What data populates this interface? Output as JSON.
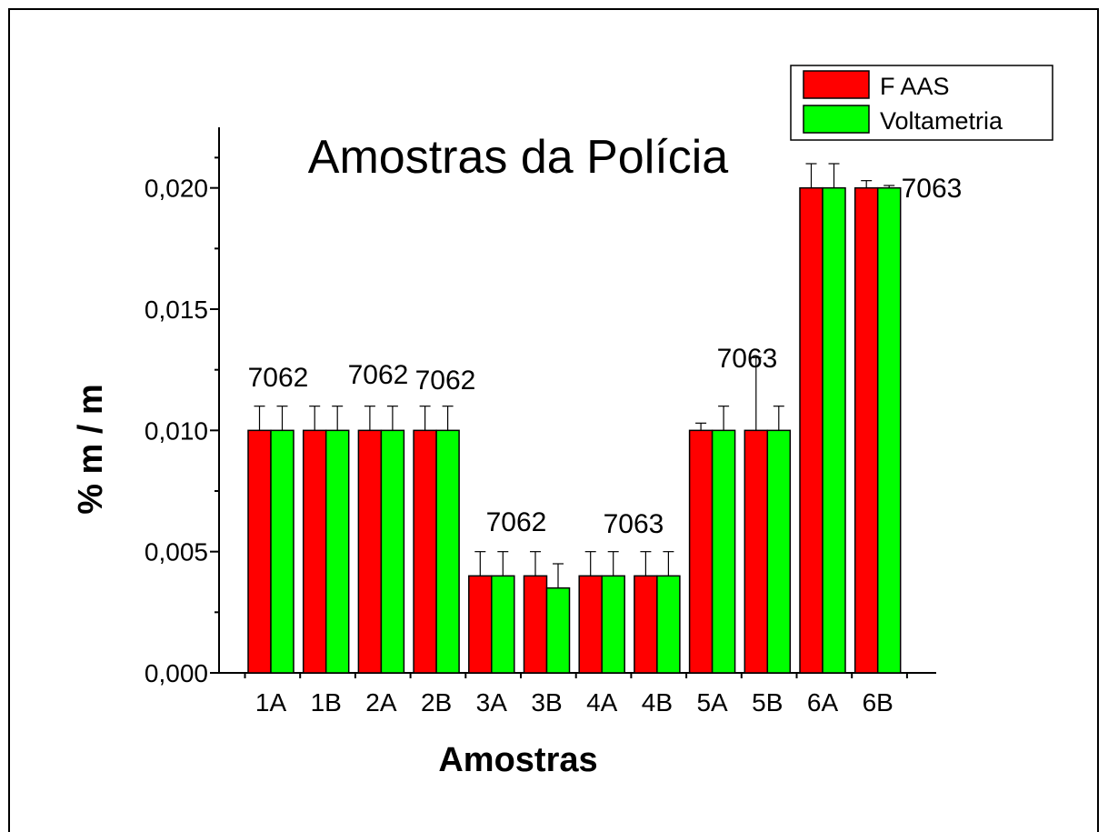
{
  "chart_data": {
    "type": "bar",
    "title": "Amostras da Polícia",
    "xlabel": "Amostras",
    "ylabel": "% m / m",
    "categories": [
      "1A",
      "1B",
      "2A",
      "2B",
      "3A",
      "3B",
      "4A",
      "4B",
      "5A",
      "5B",
      "6A",
      "6B"
    ],
    "series": [
      {
        "name": "F AAS",
        "color": "#ff0000",
        "values": [
          0.01,
          0.01,
          0.01,
          0.01,
          0.004,
          0.004,
          0.004,
          0.004,
          0.01,
          0.01,
          0.02,
          0.02
        ],
        "errors": [
          0.001,
          0.001,
          0.001,
          0.001,
          0.001,
          0.001,
          0.001,
          0.001,
          0.0003,
          0.003,
          0.001,
          0.0003
        ]
      },
      {
        "name": "Voltametria",
        "color": "#00ff00",
        "values": [
          0.01,
          0.01,
          0.01,
          0.01,
          0.004,
          0.0035,
          0.004,
          0.004,
          0.01,
          0.01,
          0.02,
          0.02
        ],
        "errors": [
          0.001,
          0.001,
          0.001,
          0.001,
          0.001,
          0.001,
          0.001,
          0.001,
          0.001,
          0.001,
          0.001,
          0.0001
        ]
      }
    ],
    "annotations": [
      "7062",
      "7062",
      "7062",
      "7062",
      "7063",
      "7063",
      "7063"
    ],
    "ylim": [
      0,
      0.0225
    ],
    "yticks": [
      {
        "value": 0,
        "label": "0,000"
      },
      {
        "value": 0.005,
        "label": "0,005"
      },
      {
        "value": 0.01,
        "label": "0,010"
      },
      {
        "value": 0.015,
        "label": "0,015"
      },
      {
        "value": 0.02,
        "label": "0,020"
      }
    ],
    "legend": "upper right"
  }
}
